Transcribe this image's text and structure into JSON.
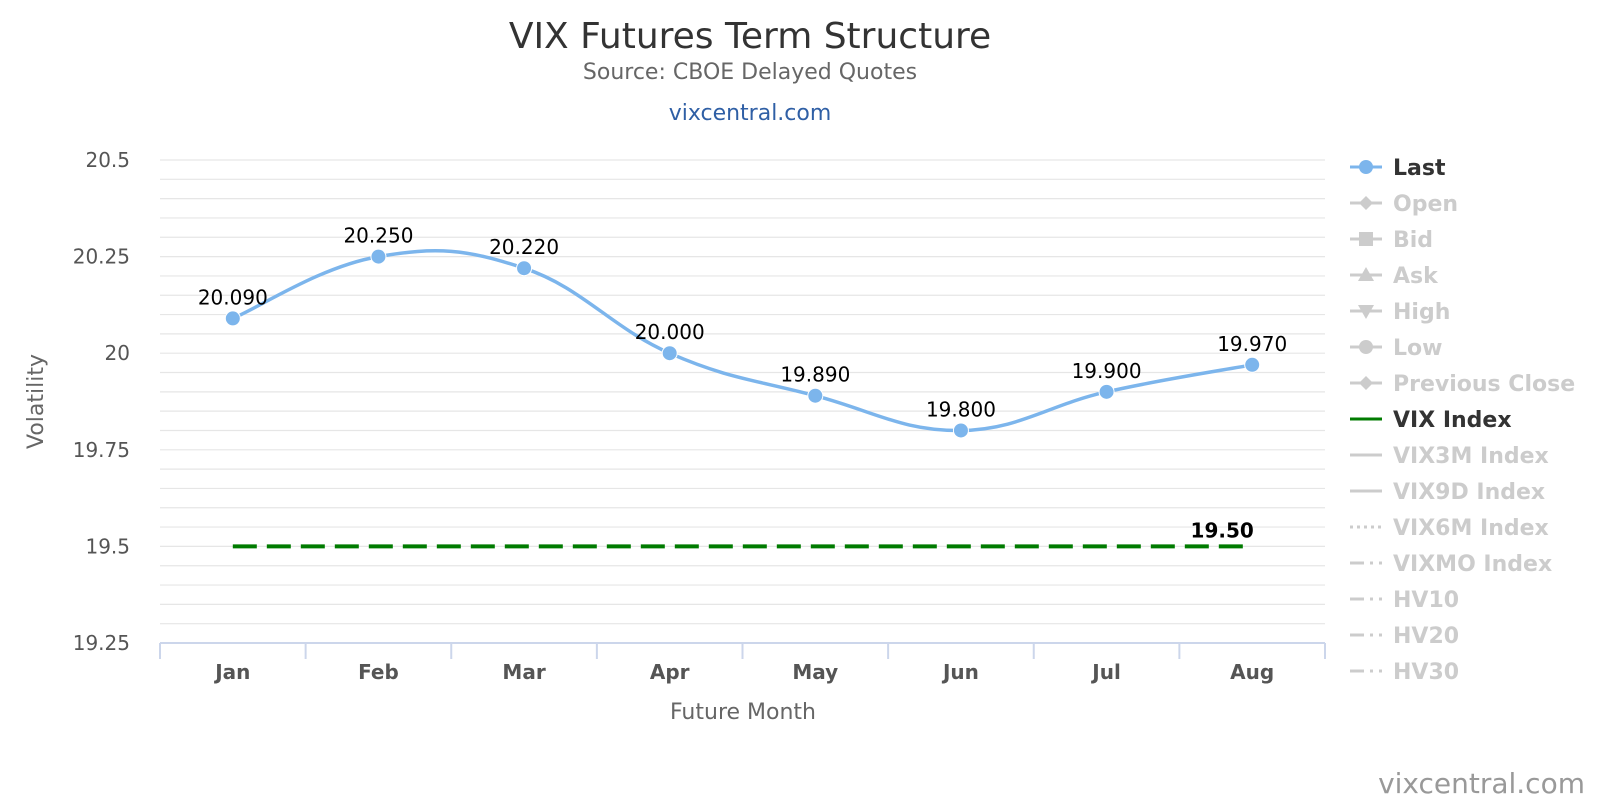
{
  "chart_data": {
    "type": "line",
    "title": "VIX Futures Term Structure",
    "subtitle": "Source: CBOE Delayed Quotes",
    "subtitle_link": "vixcentral.com",
    "credit": "vixcentral.com",
    "xlabel": "Future Month",
    "ylabel": "Volatility",
    "categories": [
      "Jan",
      "Feb",
      "Mar",
      "Apr",
      "May",
      "Jun",
      "Jul",
      "Aug"
    ],
    "ylim": [
      19.25,
      20.5
    ],
    "yticks": [
      "19.25",
      "19.5",
      "19.75",
      "20",
      "20.25",
      "20.5"
    ],
    "series": [
      {
        "name": "Last",
        "values": [
          20.09,
          20.25,
          20.22,
          20.0,
          19.89,
          19.8,
          19.9,
          19.97
        ],
        "data_labels": [
          "20.090",
          "20.250",
          "20.220",
          "20.000",
          "19.890",
          "19.800",
          "19.900",
          "19.970"
        ],
        "color": "#7cb5ec",
        "style": "smooth line with markers"
      },
      {
        "name": "VIX Index",
        "values": [
          19.5,
          19.5,
          19.5,
          19.5,
          19.5,
          19.5,
          19.5,
          19.5
        ],
        "end_label": "19.50",
        "color": "#007b00",
        "style": "dashed"
      }
    ],
    "grid": true,
    "legend_position": "right",
    "legend": [
      {
        "label": "Last",
        "symbol": "circle-line",
        "active": true
      },
      {
        "label": "Open",
        "symbol": "diamond-line",
        "active": false
      },
      {
        "label": "Bid",
        "symbol": "square-line",
        "active": false
      },
      {
        "label": "Ask",
        "symbol": "triangle-line",
        "active": false
      },
      {
        "label": "High",
        "symbol": "triangle-down-line",
        "active": false
      },
      {
        "label": "Low",
        "symbol": "circle-line",
        "active": false
      },
      {
        "label": "Previous Close",
        "symbol": "diamond-line",
        "active": false
      },
      {
        "label": "VIX Index",
        "symbol": "solid-line",
        "active": true
      },
      {
        "label": "VIX3M Index",
        "symbol": "solid-line",
        "active": false
      },
      {
        "label": "VIX9D Index",
        "symbol": "solid-line",
        "active": false
      },
      {
        "label": "VIX6M Index",
        "symbol": "dotted-line",
        "active": false
      },
      {
        "label": "VIXMO Index",
        "symbol": "dashdot-line",
        "active": false
      },
      {
        "label": "HV10",
        "symbol": "dashdot-line",
        "active": false
      },
      {
        "label": "HV20",
        "symbol": "dashdot-line",
        "active": false
      },
      {
        "label": "HV30",
        "symbol": "dashdot-line",
        "active": false
      }
    ],
    "colors": {
      "last_series": "#7cb5ec",
      "vix_index": "#007b00",
      "legend_active": "#333333",
      "legend_inactive": "#cccccc",
      "grid": "#e6e6e6",
      "axis": "#ccd6eb"
    }
  }
}
